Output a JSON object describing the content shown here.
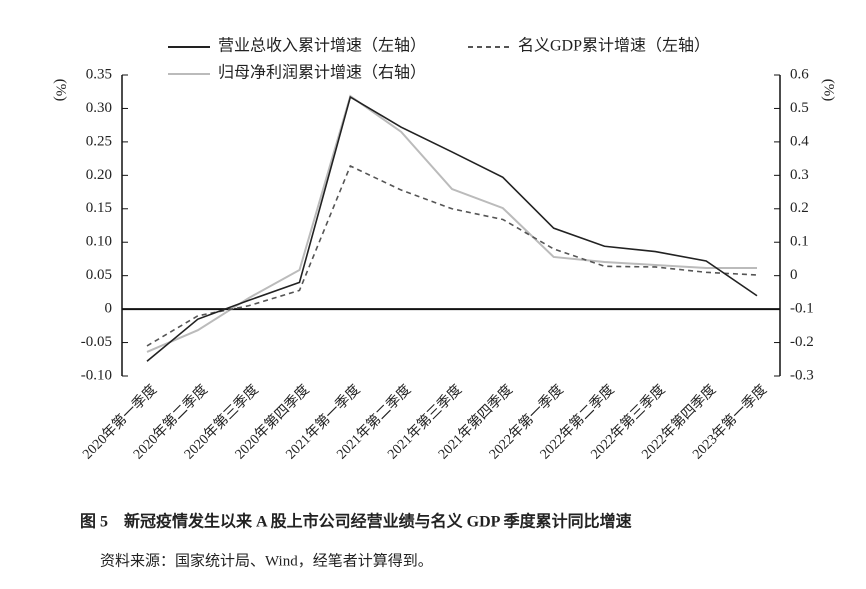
{
  "chart_data": {
    "type": "line",
    "caption": "图 5　新冠疫情发生以来 A 股上市公司经营业绩与名义 GDP 季度累计同比增速",
    "source": "资料来源：国家统计局、Wind，经笔者计算得到。",
    "ylabel": "(%)",
    "y2label": "(%)",
    "categories": [
      "2020年第一季度",
      "2020年第二季度",
      "2020年第三季度",
      "2020年第四季度",
      "2021年第一季度",
      "2021年第二季度",
      "2021年第三季度",
      "2021年第四季度",
      "2022年第一季度",
      "2022年第二季度",
      "2022年第三季度",
      "2022年第四季度",
      "2023年第一季度"
    ],
    "series": [
      {
        "name": "营业总收入累计增速（左轴）",
        "color": "#222222",
        "style": "solid",
        "values": [
          -0.078,
          -0.015,
          0.013,
          0.04,
          0.317,
          0.272,
          0.235,
          0.197,
          0.121,
          0.094,
          0.086,
          0.072,
          0.02
        ]
      },
      {
        "name": "名义GDP累计增速（左轴）",
        "color": "#555555",
        "style": "dashed",
        "values": [
          -0.055,
          -0.01,
          0.005,
          0.028,
          0.214,
          0.178,
          0.15,
          0.134,
          0.09,
          0.064,
          0.063,
          0.055,
          0.051
        ]
      },
      {
        "name": "归母净利润累计增速（右轴）",
        "color": "#bbbbbb",
        "style": "solid",
        "axis": "y2",
        "values": [
          -0.228,
          -0.163,
          -0.067,
          0.017,
          0.537,
          0.43,
          0.259,
          0.202,
          0.056,
          0.041,
          0.032,
          0.023,
          0.023
        ]
      }
    ],
    "ylim": [
      -0.1,
      0.35
    ],
    "yticks": [
      {
        "value": -0.1,
        "label": "-0.10"
      },
      {
        "value": -0.05,
        "label": "-0.05"
      },
      0,
      {
        "value": 0.05,
        "label": "0.05"
      },
      {
        "value": 0.1,
        "label": "0.10"
      },
      0.15,
      {
        "value": 0.2,
        "label": "0.20"
      },
      0.25,
      {
        "value": 0.3,
        "label": "0.30"
      },
      0.35
    ],
    "y2lim": [
      -0.3,
      0.6
    ],
    "y2ticks": [
      -0.3,
      -0.2,
      -0.1,
      0,
      0.1,
      0.2,
      0.3,
      0.4,
      0.5,
      0.6
    ]
  }
}
